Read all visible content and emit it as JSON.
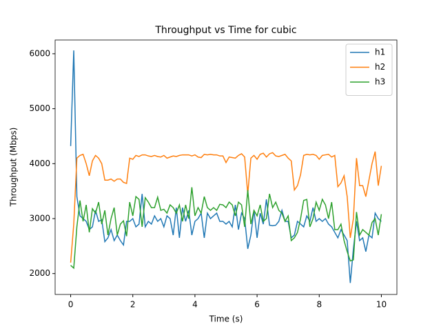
{
  "chart_data": {
    "type": "line",
    "title": "Throughput vs Time for cubic",
    "xlabel": "Time (s)",
    "ylabel": "Throughput (Mbps)",
    "x": [
      0,
      0.1,
      0.2,
      0.3,
      0.4,
      0.5,
      0.6,
      0.7,
      0.8,
      0.9,
      1,
      1.1,
      1.2,
      1.3,
      1.4,
      1.5,
      1.6,
      1.7,
      1.8,
      1.9,
      2,
      2.1,
      2.2,
      2.3,
      2.4,
      2.5,
      2.6,
      2.7,
      2.8,
      2.9,
      3,
      3.1,
      3.2,
      3.3,
      3.4,
      3.5,
      3.6,
      3.7,
      3.8,
      3.9,
      4,
      4.1,
      4.2,
      4.3,
      4.4,
      4.5,
      4.6,
      4.7,
      4.8,
      4.9,
      5,
      5.1,
      5.2,
      5.3,
      5.4,
      5.5,
      5.6,
      5.7,
      5.8,
      5.9,
      6,
      6.1,
      6.2,
      6.3,
      6.4,
      6.5,
      6.6,
      6.7,
      6.8,
      6.9,
      7,
      7.1,
      7.2,
      7.3,
      7.4,
      7.5,
      7.6,
      7.7,
      7.8,
      7.9,
      8,
      8.1,
      8.2,
      8.3,
      8.4,
      8.5,
      8.6,
      8.7,
      8.8,
      8.9,
      9,
      9.1,
      9.2,
      9.3,
      9.4,
      9.5,
      9.6,
      9.7,
      9.8,
      9.9,
      10
    ],
    "series": [
      {
        "name": "h1",
        "color": "#1f77b4",
        "values": [
          4320,
          6060,
          3400,
          3050,
          3000,
          2950,
          2800,
          2850,
          3150,
          2950,
          2980,
          2580,
          2650,
          2800,
          2600,
          2700,
          2600,
          2520,
          2950,
          2950,
          3000,
          2850,
          2900,
          3450,
          2850,
          2950,
          2900,
          3050,
          2950,
          3000,
          2850,
          3050,
          3000,
          2700,
          3200,
          2650,
          3200,
          2950,
          3150,
          2700,
          2950,
          3000,
          3100,
          2650,
          3100,
          3000,
          3050,
          3100,
          2950,
          2950,
          2900,
          2950,
          2850,
          3250,
          2800,
          3100,
          3000,
          2450,
          2700,
          3150,
          2650,
          3100,
          2900,
          3350,
          2880,
          2870,
          2880,
          2950,
          3150,
          2950,
          2950,
          2650,
          2700,
          2950,
          2900,
          2850,
          3050,
          2950,
          3200,
          2950,
          3000,
          2950,
          3000,
          2900,
          2850,
          2750,
          2650,
          2800,
          2700,
          2600,
          1830,
          2450,
          2950,
          2600,
          2650,
          2400,
          2700,
          2650,
          3100,
          3000,
          2950
        ]
      },
      {
        "name": "h2",
        "color": "#ff7f0e",
        "values": [
          2200,
          2900,
          4100,
          4150,
          4170,
          4000,
          3780,
          4050,
          4150,
          4100,
          4000,
          3700,
          3700,
          3720,
          3680,
          3720,
          3720,
          3660,
          3640,
          4100,
          4080,
          4150,
          4130,
          4160,
          4160,
          4140,
          4130,
          4150,
          4130,
          4120,
          4150,
          4100,
          4120,
          4140,
          4130,
          4150,
          4160,
          4160,
          4160,
          4140,
          4160,
          4120,
          4110,
          4170,
          4160,
          4170,
          4160,
          4160,
          4140,
          4140,
          4020,
          4120,
          4110,
          4100,
          4150,
          4180,
          4120,
          3450,
          4100,
          4150,
          4080,
          4170,
          4190,
          4120,
          4180,
          4200,
          4140,
          4130,
          4150,
          4170,
          4100,
          4050,
          3520,
          3600,
          3800,
          4150,
          4170,
          4160,
          4170,
          4150,
          4080,
          4150,
          4160,
          4170,
          4120,
          4150,
          3580,
          3650,
          3780,
          3400,
          2650,
          3000,
          4100,
          3600,
          3600,
          3400,
          3700,
          4000,
          4220,
          3600,
          3960
        ]
      },
      {
        "name": "h3",
        "color": "#2ca02c",
        "values": [
          2150,
          2100,
          2850,
          3330,
          2950,
          3250,
          2750,
          3180,
          3100,
          3300,
          2900,
          3150,
          2700,
          3000,
          3200,
          2700,
          2900,
          2960,
          2680,
          3300,
          3050,
          3400,
          3350,
          2850,
          3380,
          3300,
          3200,
          3200,
          3390,
          3150,
          3170,
          3100,
          3250,
          3200,
          3100,
          3250,
          2950,
          3250,
          3000,
          3570,
          3050,
          3200,
          3100,
          3400,
          3200,
          3150,
          3200,
          3150,
          3260,
          3250,
          3200,
          3300,
          3250,
          3050,
          3300,
          3250,
          2850,
          3520,
          2900,
          3150,
          3050,
          3250,
          2950,
          3000,
          3450,
          3200,
          3300,
          3150,
          3100,
          2950,
          3050,
          2600,
          2650,
          2750,
          3000,
          3330,
          3350,
          2850,
          3000,
          3300,
          3150,
          3350,
          3250,
          3000,
          3300,
          2800,
          2800,
          2900,
          2600,
          2400,
          2230,
          2250,
          3120,
          2700,
          2800,
          2750,
          2700,
          2930,
          3000,
          2700,
          3080
        ]
      }
    ],
    "xlim": [
      -0.5,
      10.5
    ],
    "xticks": [
      0,
      2,
      4,
      6,
      8,
      10
    ],
    "ylim": [
      1620,
      6250
    ],
    "yticks": [
      2000,
      3000,
      4000,
      5000,
      6000
    ],
    "legend": "upper right"
  }
}
